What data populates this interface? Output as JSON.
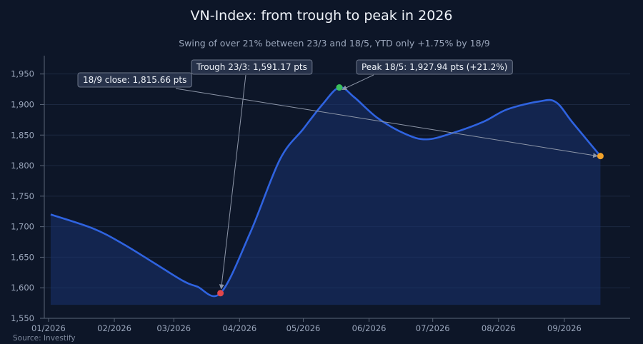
{
  "chart_data": {
    "type": "area",
    "title": "VN-Index: from trough to peak in 2026",
    "subtitle": "Swing of over 21% between 23/3 and 18/5, YTD only +1.75% by 18/9",
    "source": "Source: Investify",
    "xlabel": "",
    "ylabel": "",
    "x_ticks": [
      "2026-01-01",
      "2026-02-01",
      "2026-03-01",
      "2026-04-01",
      "2026-05-01",
      "2026-06-01",
      "2026-07-01",
      "2026-08-01",
      "2026-09-01"
    ],
    "x_tick_labels": [
      "01/2026",
      "02/2026",
      "03/2026",
      "04/2026",
      "05/2026",
      "06/2026",
      "07/2026",
      "08/2026",
      "09/2026"
    ],
    "x_range": [
      "2025-12-30",
      "2026-10-02"
    ],
    "ylim": [
      1550,
      1980
    ],
    "y_ticks": [
      1550,
      1600,
      1650,
      1700,
      1750,
      1800,
      1850,
      1900,
      1950
    ],
    "y_tick_labels": [
      "1,550",
      "1,600",
      "1,650",
      "1,700",
      "1,750",
      "1,800",
      "1,850",
      "1,900",
      "1,950"
    ],
    "area_baseline": 1572,
    "grid": true,
    "colors": {
      "line": "#2f63e0",
      "fill": "#1a3370",
      "trough": "#e2474b",
      "peak": "#3bbf5c",
      "close": "#f2a22a",
      "grid": "#1c2840",
      "annotation_arrow": "#8d96a8"
    },
    "series": [
      {
        "x": [
          "2026-01-02",
          "2026-01-22",
          "2026-02-05",
          "2026-02-20",
          "2026-03-05",
          "2026-03-12",
          "2026-03-23",
          "2026-04-06",
          "2026-04-20",
          "2026-05-01",
          "2026-05-10",
          "2026-05-18",
          "2026-05-25",
          "2026-06-05",
          "2026-06-18",
          "2026-06-28",
          "2026-07-10",
          "2026-07-25",
          "2026-08-05",
          "2026-08-20",
          "2026-08-28",
          "2026-09-05",
          "2026-09-18"
        ],
        "y": [
          1720,
          1697,
          1672,
          1640,
          1612,
          1602,
          1591.17,
          1690,
          1810,
          1860,
          1900,
          1927.94,
          1912,
          1878,
          1852,
          1843,
          1853,
          1872,
          1892,
          1905,
          1904,
          1870,
          1815.66
        ]
      }
    ],
    "markers": [
      {
        "key": "trough",
        "x": "2026-03-23",
        "y": 1591.17,
        "color": "#e2474b"
      },
      {
        "key": "peak",
        "x": "2026-05-18",
        "y": 1927.94,
        "color": "#3bbf5c"
      },
      {
        "key": "close",
        "x": "2026-09-18",
        "y": 1815.66,
        "color": "#f2a22a"
      }
    ],
    "annotations": [
      {
        "key": "trough",
        "text": "Trough 23/3: 1,591.17 pts",
        "target_x": "2026-03-23",
        "target_y": 1591.17
      },
      {
        "key": "peak",
        "text": "Peak 18/5: 1,927.94 pts (+21.2%)",
        "target_x": "2026-05-18",
        "target_y": 1927.94
      },
      {
        "key": "close",
        "text": "18/9 close: 1,815.66 pts",
        "target_x": "2026-09-18",
        "target_y": 1815.66
      }
    ]
  }
}
